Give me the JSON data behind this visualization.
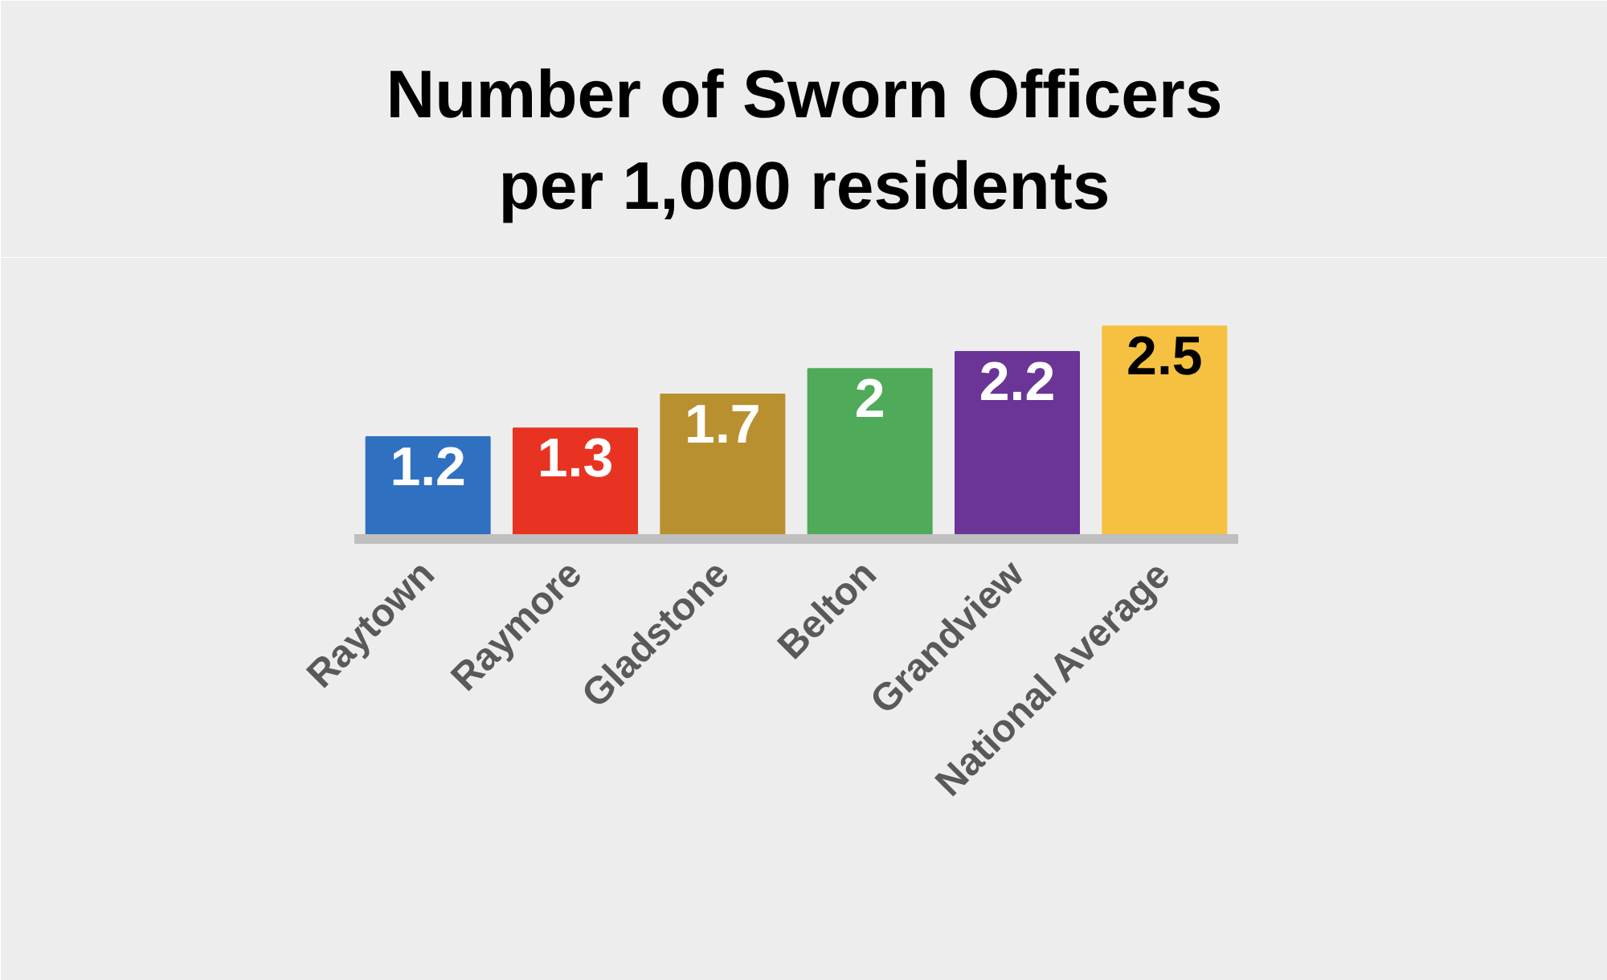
{
  "chart_data": {
    "type": "bar",
    "title": "Number of Sworn Officers\nper 1,000 residents",
    "categories": [
      "Raytown",
      "Raymore",
      "Gladstone",
      "Belton",
      "Grandview",
      "National Average"
    ],
    "values": [
      1.2,
      1.3,
      1.7,
      2,
      2.2,
      2.5
    ],
    "colors": [
      "#3070c0",
      "#e83323",
      "#b8902f",
      "#4faa5a",
      "#6a3597",
      "#f6c141"
    ],
    "data_labels": true,
    "grid": false
  }
}
